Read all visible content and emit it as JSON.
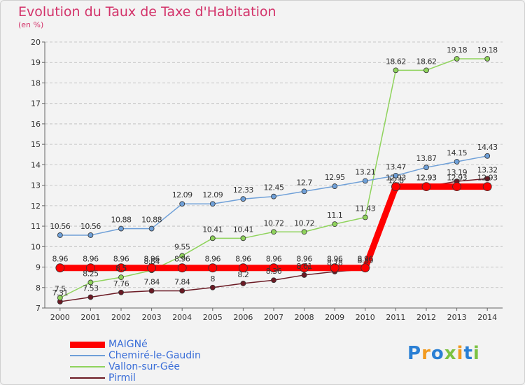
{
  "title": "Evolution du Taux de Taxe d'Habitation",
  "subtitle": "(en %)",
  "logo": {
    "text": "Proxiti",
    "colors": [
      "#2a7fd4",
      "#f29a1f",
      "#2a7fd4",
      "#7cc242",
      "#f29a1f",
      "#2a7fd4",
      "#7cc242"
    ]
  },
  "colors": {
    "background": "#f3f3f3",
    "grid": "#bbbbbb",
    "title": "#d3336a",
    "legend_text": "#3a6ed8"
  },
  "chart_data": {
    "type": "line",
    "title": "Evolution du Taux de Taxe d'Habitation",
    "ylabel": "(en %)",
    "xlabel": "",
    "ylim": [
      7,
      20
    ],
    "yticks": [
      7,
      8,
      9,
      10,
      11,
      12,
      13,
      14,
      15,
      16,
      17,
      18,
      19,
      20
    ],
    "x": [
      2000,
      2001,
      2002,
      2003,
      2004,
      2005,
      2006,
      2007,
      2008,
      2009,
      2010,
      2011,
      2012,
      2013,
      2014
    ],
    "grid": "horizontal dashed",
    "legend_position": "bottom-left",
    "series": [
      {
        "name": "Pirmil",
        "color": "#6b1a24",
        "width": 1.5,
        "marker": 3.5,
        "values": [
          7.31,
          7.53,
          7.76,
          7.84,
          7.84,
          8,
          8.2,
          8.36,
          8.61,
          8.78,
          8.89,
          12.8,
          12.93,
          13.19,
          13.32
        ],
        "labels": [
          "7.31",
          "7.53",
          "7.76",
          "7.84",
          "7.84",
          "8",
          "8.2",
          "8.36",
          "8.61",
          "8.78",
          "8.89",
          "12.8",
          "12.93",
          "13.19",
          "13.32"
        ]
      },
      {
        "name": "Vallon-sur-Gée",
        "color": "#8fd35c",
        "width": 1.5,
        "marker": 3.5,
        "values": [
          7.5,
          8.25,
          8.5,
          8.84,
          9.55,
          10.41,
          10.41,
          10.72,
          10.72,
          11.1,
          11.43,
          18.62,
          18.62,
          19.18,
          19.18
        ],
        "labels": [
          "7.5",
          "8.25",
          "8.5",
          "8.84",
          "9.55",
          "10.41",
          "10.41",
          "10.72",
          "10.72",
          "11.1",
          "11.43",
          "18.62",
          "18.62",
          "19.18",
          "19.18"
        ]
      },
      {
        "name": "Chemiré-le-Gaudin",
        "color": "#6fa0d8",
        "width": 1.5,
        "marker": 3.5,
        "values": [
          10.56,
          10.56,
          10.88,
          10.88,
          12.09,
          12.09,
          12.33,
          12.45,
          12.7,
          12.95,
          13.21,
          13.47,
          13.87,
          14.15,
          14.43
        ],
        "labels": [
          "10.56",
          "10.56",
          "10.88",
          "10.88",
          "12.09",
          "12.09",
          "12.33",
          "12.45",
          "12.7",
          "12.95",
          "13.21",
          "13.47",
          "13.87",
          "14.15",
          "14.43"
        ]
      },
      {
        "name": "MAIGNé",
        "color": "#ff0000",
        "width": 9,
        "marker": 6,
        "values": [
          8.96,
          8.96,
          8.96,
          8.96,
          8.96,
          8.96,
          8.96,
          8.96,
          8.96,
          8.96,
          8.96,
          12.93,
          12.93,
          12.93,
          12.93
        ],
        "labels": [
          "8.96",
          "8.96",
          "8.96",
          "8.96",
          "8.96",
          "8.96",
          "8.96",
          "8.96",
          "8.96",
          "8.96",
          "8.96",
          "12.93",
          "12.93",
          "12.93",
          "12.93"
        ]
      }
    ],
    "legend": [
      {
        "name": "MAIGNé",
        "color": "#ff0000",
        "width": 9
      },
      {
        "name": "Chemiré-le-Gaudin",
        "color": "#6fa0d8",
        "width": 1.5
      },
      {
        "name": "Vallon-sur-Gée",
        "color": "#8fd35c",
        "width": 1.5
      },
      {
        "name": "Pirmil",
        "color": "#6b1a24",
        "width": 1.5
      }
    ]
  }
}
